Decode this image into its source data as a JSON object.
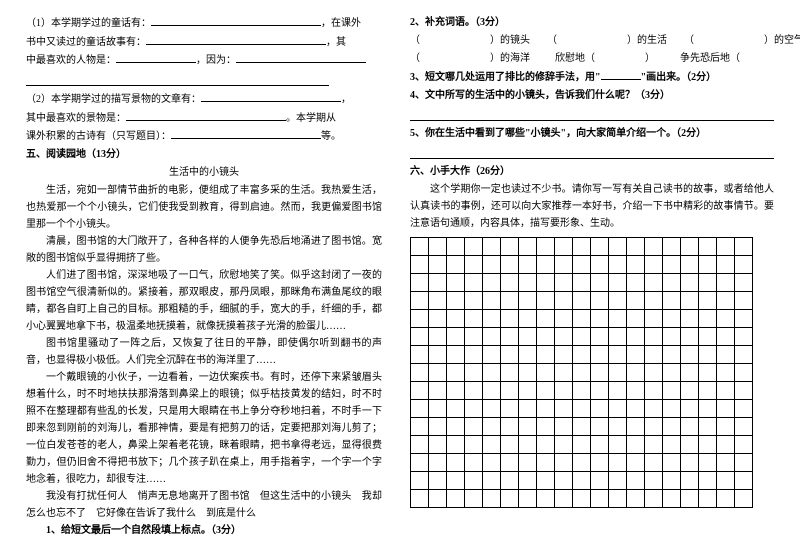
{
  "left": {
    "q1_a": "（1）本学期学过的童话有：",
    "q1_b": "，在课外",
    "q1_c": "书中又读过的童话故事有：",
    "q1_d": "，其",
    "q1_e": "中最喜欢的人物是：",
    "q1_f": "，因为：",
    "q2_a": "（2）本学期学过的描写景物的文章有：",
    "q2_b": "，",
    "q2_c": "其中最喜欢的景物是：",
    "q2_d": "。本学期从",
    "q2_e": "课外积累的古诗有（只写题目）：",
    "q2_f": "等。",
    "sec5": "五、阅读园地（13分）",
    "title": "生活中的小镜头",
    "p1": "生活，宛如一部情节曲折的电影，便组成了丰富多采的生活。我热爱生活，也热爱那一个个小镜头，它们使我受到教育，得到启迪。然而，我更偏爱图书馆里那一个个小镜头。",
    "p2": "清晨，图书馆的大门敞开了，各种各样的人便争先恐后地涌进了图书馆。宽敞的图书馆似乎显得拥挤了些。",
    "p3": "人们进了图书馆，深深地吸了一口气，欣慰地笑了笑。似乎这封闭了一夜的图书馆空气很清新似的。紧接着，那双眼皮，那丹凤眼，那眯角布满鱼尾纹的眼睛，都各自盯上自己的目标。那粗糙的手，细腻的手，宽大的手，纤细的手，都小心翼翼地拿下书，极温柔地抚摸着，就像抚摸着孩子光滑的脸蛋儿……",
    "p4": "图书馆里骚动了一阵之后，又恢复了往日的平静，即使偶尔听到翻书的声音，也显得极小极低。人们完全沉醉在书的海洋里了……",
    "p5": "一个戴眼镜的小伙子，一边看着，一边伏案疾书。有时，还停下来紧皱眉头想着什么，时不时地扶扶那滑落到鼻梁上的眼镜；似乎枯技黄发的结妇，时不时照不在整理都有些乱的长发，只是用大眼睛在书上争分夺秒地扫着，不时手一下即来忽到刚前的刘海儿，看那神情，要是有把剪刀的话，定要把那刘海儿剪了；一位白发苍苍的老人，鼻梁上架着老花镜，眯着眼睛，把书拿得老远，显得很费勤力，但仍旧舍不得把书放下；几个孩子趴在桌上，用手指着字，一个字一个字地念着，很吃力，却很专注……",
    "p6": "我没有打扰任何人　悄声无息地离开了图书馆　但这生活中的小镜头　我却怎么也忘不了　它好像在告诉了我什么　到底是什么",
    "q_last": "1、给短文最后一个自然段填上标点。（3分）"
  },
  "right": {
    "q2_title": "2、补充词语。（3分）",
    "r1a": "（",
    "r1b": "）的镜头",
    "r1c": "（",
    "r1d": "）的生活",
    "r1e": "（",
    "r1f": "）的空气",
    "r2a": "（",
    "r2b": "）的海洋",
    "r2c": "欣慰地（",
    "r2d": "）",
    "r2e": "争先恐后地（",
    "q3a": "3、短文哪几处运用了排比的修辞手法，用\"",
    "q3b": "\"画出来。（2分）",
    "q4": "4、文中所写的生活中的小镜头，告诉我们什么呢？（3分）",
    "q5": "5、你在生活中看到了哪些\"小镜头\"，向大家简单介绍一个。（2分）",
    "sec6": "六、小手大作（26分）",
    "intro": "这个学期你一定也读过不少书。请你写一写有关自己读书的故事，或者给他人认真读书的事例，还可以向大家推荐一本好书，介绍一下书中精彩的故事情节。要注意语句通顺，内容具体，描写要形象、生动。",
    "grid": {
      "rows": 15,
      "cols": 19
    }
  }
}
